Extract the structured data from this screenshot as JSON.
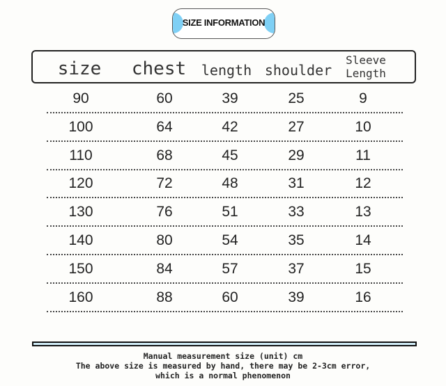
{
  "badge": {
    "title": "SIZE INFORMATION",
    "accent": "#7fd0f5"
  },
  "columns": [
    "size",
    "chest",
    "length",
    "shoulder",
    "Sleeve Length"
  ],
  "rows": [
    [
      "90",
      "60",
      "39",
      "25",
      "9"
    ],
    [
      "100",
      "64",
      "42",
      "27",
      "10"
    ],
    [
      "110",
      "68",
      "45",
      "29",
      "11"
    ],
    [
      "120",
      "72",
      "48",
      "31",
      "12"
    ],
    [
      "130",
      "76",
      "51",
      "33",
      "13"
    ],
    [
      "140",
      "80",
      "54",
      "35",
      "14"
    ],
    [
      "150",
      "84",
      "57",
      "37",
      "15"
    ],
    [
      "160",
      "88",
      "60",
      "39",
      "16"
    ]
  ],
  "notes": [
    "Manual measurement size (unit) cm",
    "The above size is measured by hand, there may be 2-3cm error,",
    "which is a normal phenomenon"
  ]
}
